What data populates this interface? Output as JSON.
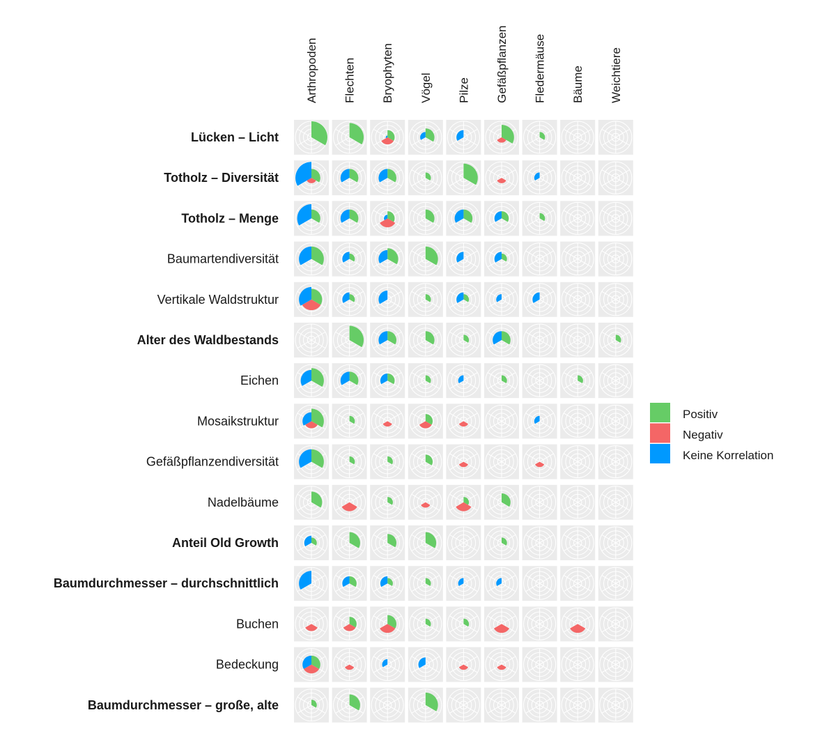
{
  "chart_data": {
    "type": "polar-area-matrix",
    "columns": [
      "Arthropoden",
      "Flechten",
      "Bryophyten",
      "Vögel",
      "Pilze",
      "Gefäßpflanzen",
      "Fledermäuse",
      "Bäume",
      "Weichtiere"
    ],
    "legend": [
      {
        "key": "pos",
        "label": "Positiv",
        "color": "#66cc66"
      },
      {
        "key": "neg",
        "label": "Negativ",
        "color": "#f46666"
      },
      {
        "key": "neu",
        "label": "Keine Korrelation",
        "color": "#0099ff"
      }
    ],
    "colors": {
      "panel": "#ebebeb",
      "grid": "#ffffff"
    },
    "max_count": 9,
    "rows": [
      {
        "label": "Lücken – Licht",
        "bold": true,
        "cells": [
          [
            9,
            0,
            0
          ],
          [
            8,
            0,
            0
          ],
          [
            4,
            4,
            1
          ],
          [
            5,
            0,
            3
          ],
          [
            0,
            0,
            4
          ],
          [
            7,
            3,
            0
          ],
          [
            3,
            0,
            0
          ],
          [
            0,
            0,
            0
          ],
          [
            0,
            0,
            0
          ]
        ]
      },
      {
        "label": "Totholz – Diversität",
        "bold": true,
        "cells": [
          [
            5,
            3,
            9
          ],
          [
            5,
            0,
            5
          ],
          [
            5,
            0,
            5
          ],
          [
            3,
            0,
            0
          ],
          [
            8,
            0,
            0
          ],
          [
            0,
            3,
            0
          ],
          [
            0,
            0,
            3
          ],
          [
            0,
            0,
            0
          ],
          [
            0,
            0,
            0
          ]
        ]
      },
      {
        "label": "Totholz – Menge",
        "bold": true,
        "cells": [
          [
            5,
            0,
            8
          ],
          [
            5,
            0,
            5
          ],
          [
            4,
            5,
            2
          ],
          [
            5,
            0,
            0
          ],
          [
            5,
            0,
            5
          ],
          [
            4,
            0,
            4
          ],
          [
            3,
            0,
            0
          ],
          [
            0,
            0,
            0
          ],
          [
            0,
            0,
            0
          ]
        ]
      },
      {
        "label": "Baumartendiversität",
        "bold": false,
        "cells": [
          [
            7,
            0,
            7
          ],
          [
            3,
            0,
            4
          ],
          [
            6,
            0,
            5
          ],
          [
            7,
            0,
            0
          ],
          [
            0,
            0,
            4
          ],
          [
            3,
            0,
            4
          ],
          [
            0,
            0,
            0
          ],
          [
            0,
            0,
            0
          ],
          [
            0,
            0,
            0
          ]
        ]
      },
      {
        "label": "Vertikale Waldstruktur",
        "bold": false,
        "cells": [
          [
            6,
            6,
            7
          ],
          [
            3,
            0,
            4
          ],
          [
            0,
            0,
            5
          ],
          [
            3,
            0,
            0
          ],
          [
            3,
            0,
            4
          ],
          [
            0,
            0,
            3
          ],
          [
            0,
            0,
            4
          ],
          [
            0,
            0,
            0
          ],
          [
            0,
            0,
            0
          ]
        ]
      },
      {
        "label": "Alter des Waldbestands",
        "bold": true,
        "cells": [
          [
            0,
            0,
            0
          ],
          [
            8,
            0,
            0
          ],
          [
            5,
            0,
            5
          ],
          [
            5,
            0,
            0
          ],
          [
            3,
            0,
            0
          ],
          [
            5,
            0,
            5
          ],
          [
            0,
            0,
            0
          ],
          [
            0,
            0,
            0
          ],
          [
            3,
            0,
            0
          ]
        ]
      },
      {
        "label": "Eichen",
        "bold": false,
        "cells": [
          [
            7,
            0,
            6
          ],
          [
            5,
            0,
            5
          ],
          [
            4,
            0,
            4
          ],
          [
            3,
            0,
            0
          ],
          [
            0,
            0,
            3
          ],
          [
            3,
            0,
            0
          ],
          [
            0,
            0,
            0
          ],
          [
            3,
            0,
            0
          ],
          [
            0,
            0,
            0
          ]
        ]
      },
      {
        "label": "Mosaikstruktur",
        "bold": false,
        "cells": [
          [
            7,
            4,
            5
          ],
          [
            3,
            0,
            0
          ],
          [
            0,
            3,
            0
          ],
          [
            4,
            4,
            0
          ],
          [
            0,
            3,
            0
          ],
          [
            0,
            0,
            0
          ],
          [
            0,
            0,
            3
          ],
          [
            0,
            0,
            0
          ],
          [
            0,
            0,
            0
          ]
        ]
      },
      {
        "label": "Gefäßpflanzendiversität",
        "bold": false,
        "cells": [
          [
            7,
            0,
            7
          ],
          [
            3,
            0,
            0
          ],
          [
            3,
            0,
            0
          ],
          [
            4,
            0,
            0
          ],
          [
            0,
            3,
            0
          ],
          [
            0,
            0,
            0
          ],
          [
            0,
            3,
            0
          ],
          [
            0,
            0,
            0
          ],
          [
            0,
            0,
            0
          ]
        ]
      },
      {
        "label": "Nadelbäume",
        "bold": false,
        "cells": [
          [
            6,
            0,
            0
          ],
          [
            0,
            5,
            0
          ],
          [
            3,
            0,
            0
          ],
          [
            0,
            3,
            0
          ],
          [
            3,
            5,
            0
          ],
          [
            5,
            0,
            0
          ],
          [
            0,
            0,
            0
          ],
          [
            0,
            0,
            0
          ],
          [
            0,
            0,
            0
          ]
        ]
      },
      {
        "label": "Anteil Old Growth",
        "bold": true,
        "cells": [
          [
            3,
            0,
            4
          ],
          [
            6,
            0,
            0
          ],
          [
            5,
            0,
            0
          ],
          [
            6,
            0,
            0
          ],
          [
            0,
            0,
            0
          ],
          [
            3,
            0,
            0
          ],
          [
            0,
            0,
            0
          ],
          [
            0,
            0,
            0
          ],
          [
            0,
            0,
            0
          ]
        ]
      },
      {
        "label": "Baumdurchmesser – durchschnittlich",
        "bold": true,
        "cells": [
          [
            0,
            0,
            7
          ],
          [
            4,
            0,
            4
          ],
          [
            3,
            0,
            4
          ],
          [
            3,
            0,
            0
          ],
          [
            0,
            0,
            3
          ],
          [
            0,
            0,
            3
          ],
          [
            0,
            0,
            0
          ],
          [
            0,
            0,
            0
          ],
          [
            0,
            0,
            0
          ]
        ]
      },
      {
        "label": "Buchen",
        "bold": false,
        "cells": [
          [
            0,
            4,
            0
          ],
          [
            4,
            4,
            0
          ],
          [
            5,
            5,
            0
          ],
          [
            3,
            0,
            0
          ],
          [
            3,
            0,
            0
          ],
          [
            0,
            5,
            0
          ],
          [
            0,
            0,
            0
          ],
          [
            0,
            5,
            0
          ],
          [
            0,
            0,
            0
          ]
        ]
      },
      {
        "label": "Bedeckung",
        "bold": false,
        "cells": [
          [
            5,
            5,
            5
          ],
          [
            0,
            3,
            0
          ],
          [
            0,
            0,
            3
          ],
          [
            0,
            0,
            4
          ],
          [
            0,
            3,
            0
          ],
          [
            0,
            3,
            0
          ],
          [
            0,
            0,
            0
          ],
          [
            0,
            0,
            0
          ],
          [
            0,
            0,
            0
          ]
        ]
      },
      {
        "label": "Baumdurchmesser – große, alte",
        "bold": true,
        "cells": [
          [
            3,
            0,
            0
          ],
          [
            6,
            0,
            0
          ],
          [
            0,
            0,
            0
          ],
          [
            7,
            0,
            0
          ],
          [
            0,
            0,
            0
          ],
          [
            0,
            0,
            0
          ],
          [
            0,
            0,
            0
          ],
          [
            0,
            0,
            0
          ],
          [
            0,
            0,
            0
          ]
        ]
      }
    ]
  }
}
